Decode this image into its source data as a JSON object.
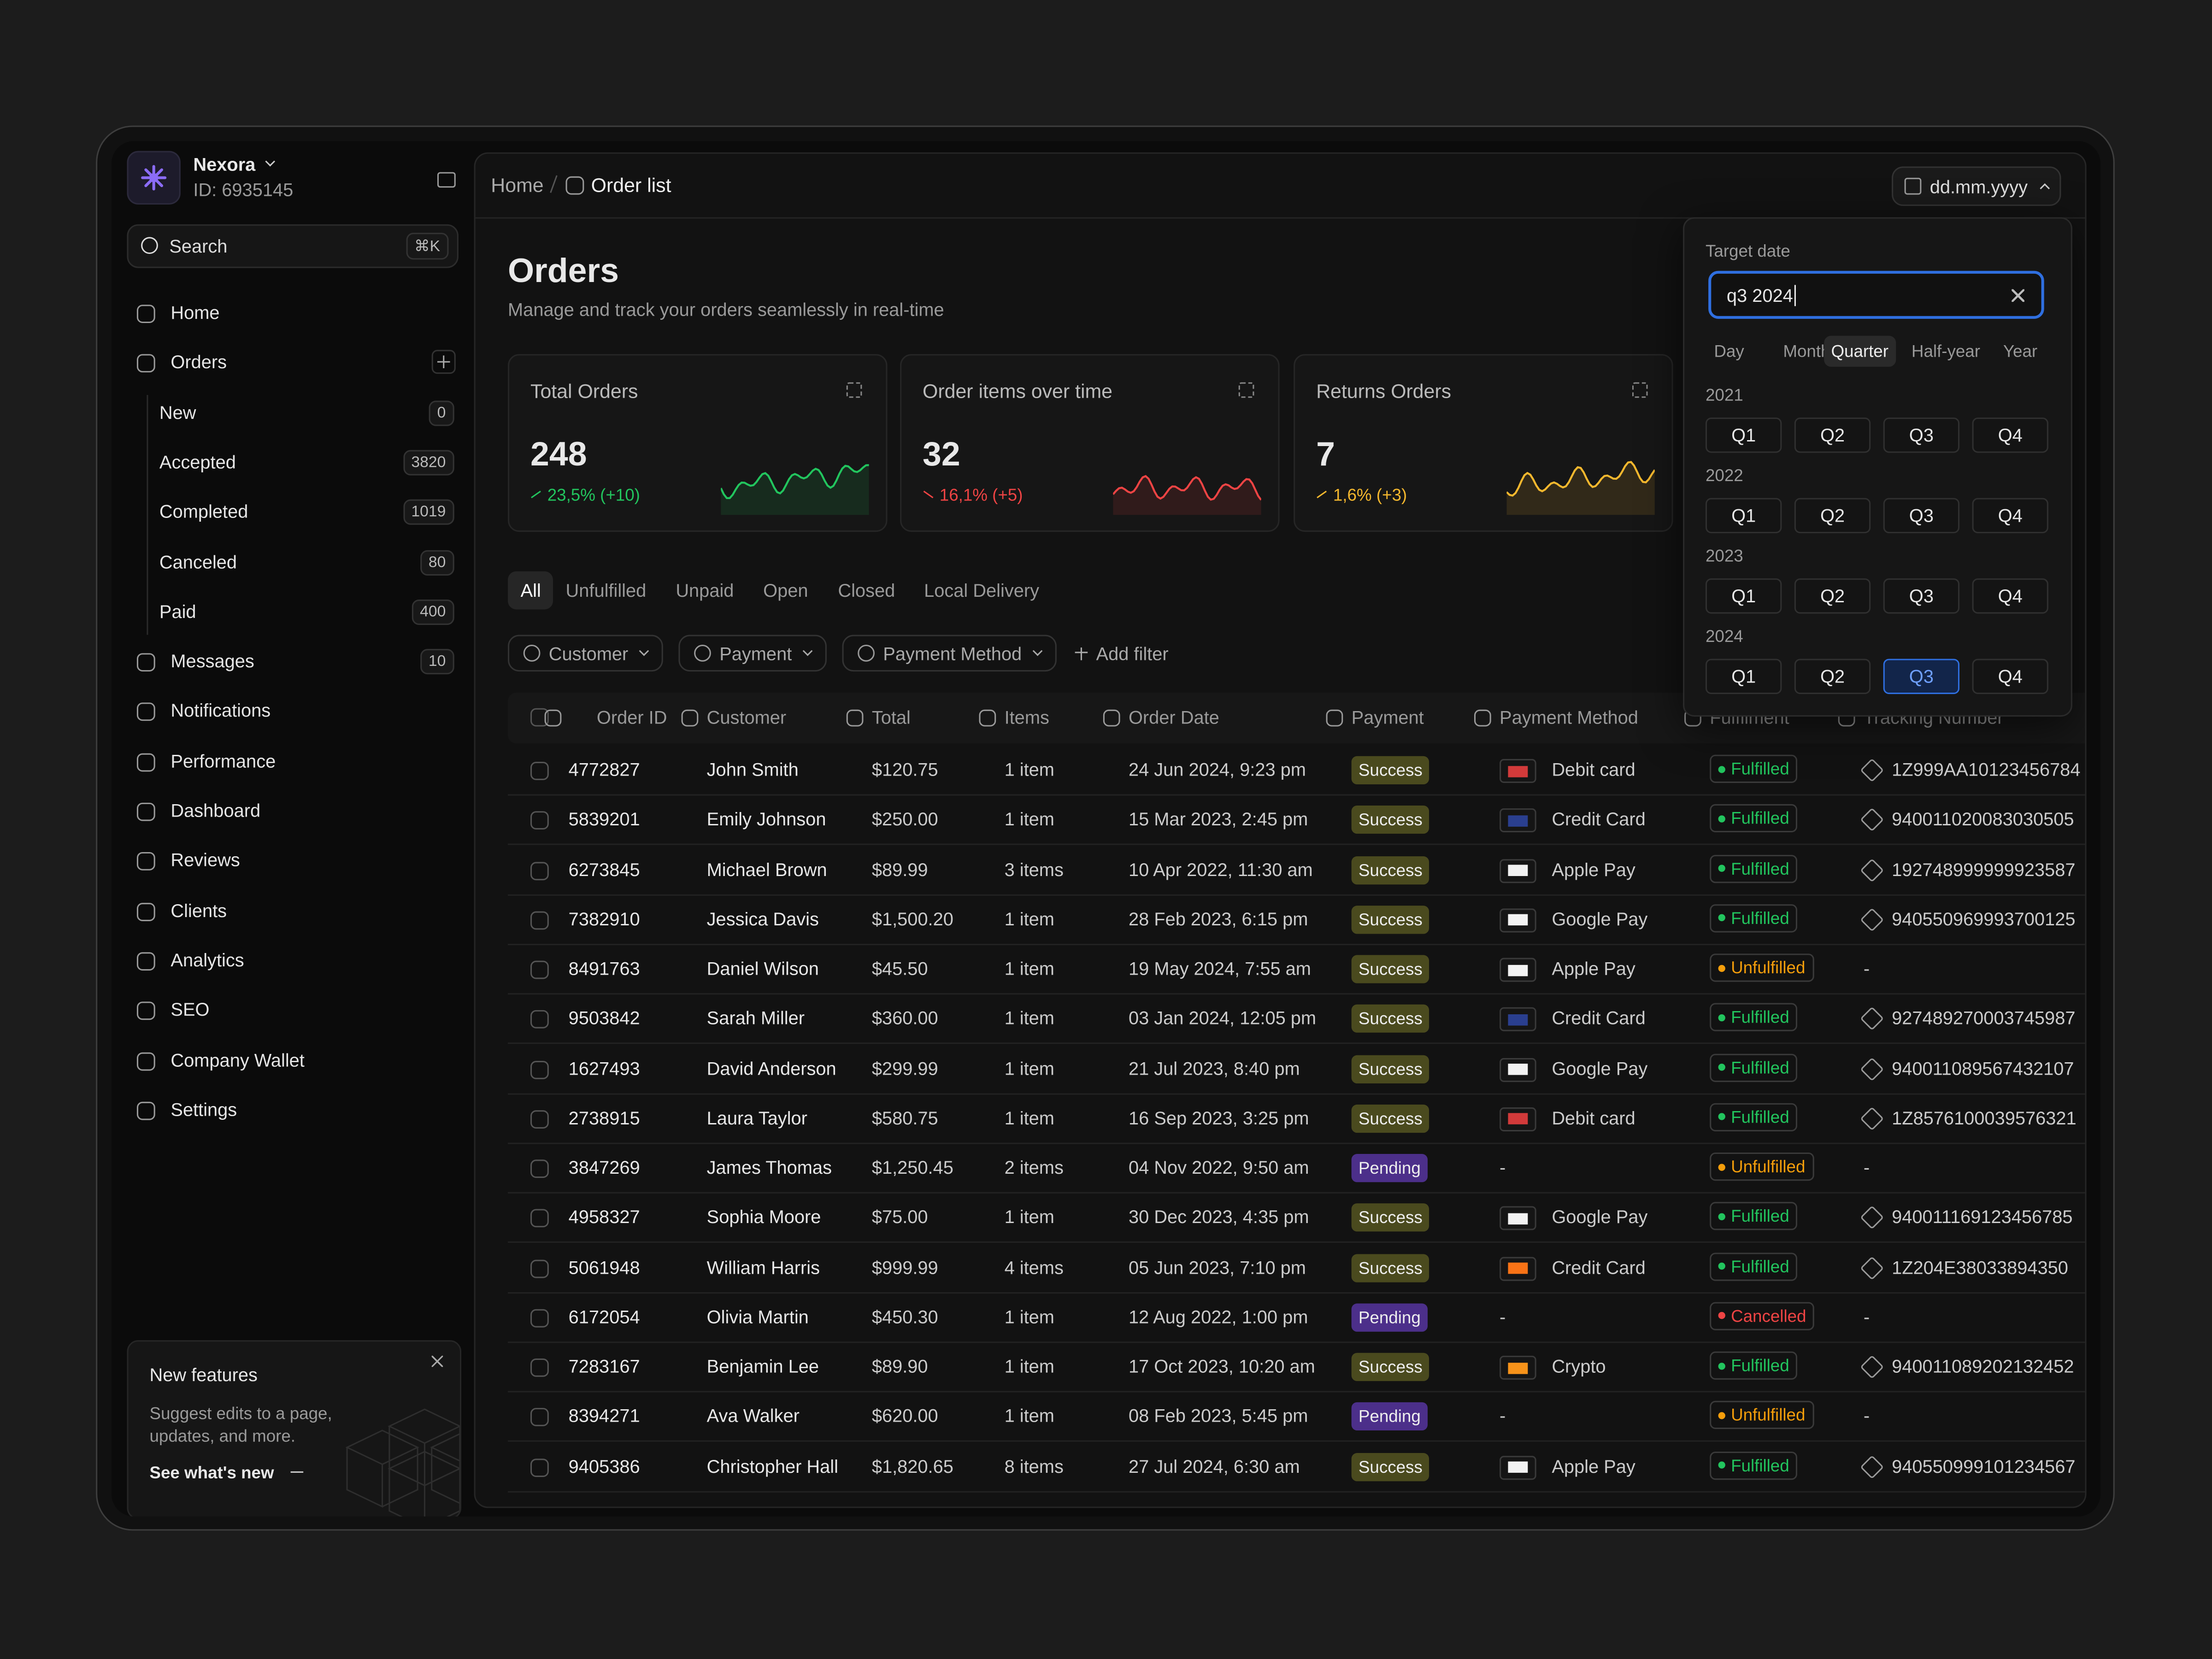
{
  "sidebar": {
    "brand": "Nexora",
    "brand_id": "ID: 6935145",
    "search": "Search",
    "shortcut": "⌘K",
    "nav_top": [
      "Home",
      "Orders"
    ],
    "orders_sub": [
      {
        "label": "New",
        "count": 0
      },
      {
        "label": "Accepted",
        "count": 3820
      },
      {
        "label": "Completed",
        "count": 1019
      },
      {
        "label": "Canceled",
        "count": 80
      },
      {
        "label": "Paid",
        "count": 400
      }
    ],
    "nav_bottom": [
      {
        "label": "Messages",
        "count": 10
      },
      {
        "label": "Notifications"
      },
      {
        "label": "Performance"
      },
      {
        "label": "Dashboard"
      },
      {
        "label": "Reviews"
      },
      {
        "label": "Clients"
      },
      {
        "label": "Analytics"
      },
      {
        "label": "SEO"
      },
      {
        "label": "Company Wallet"
      },
      {
        "label": "Settings"
      }
    ],
    "promo": {
      "title": "New features",
      "text": "Suggest edits to a page, updates, and more.",
      "link": "See what's new"
    }
  },
  "breadcrumb": [
    "Home",
    "Order list"
  ],
  "date_button": "dd.mm.yyyy",
  "header": {
    "title": "Orders",
    "subtitle": "Manage and track your orders seamlessly in real-time"
  },
  "stats": [
    {
      "title": "Total Orders",
      "value": 248,
      "change": "23,5% (+10)",
      "color": "#22c55e"
    },
    {
      "title": "Order items over time",
      "value": 32,
      "change": "16,1% (+5)",
      "color": "#ef4444"
    },
    {
      "title": "Returns Orders",
      "value": 7,
      "change": "1,6% (+3)",
      "color": "#f5b82e"
    }
  ],
  "tabs": [
    "All",
    "Unfulfilled",
    "Unpaid",
    "Open",
    "Closed",
    "Local Delivery"
  ],
  "active_tab_index": 0,
  "filters": [
    "Customer",
    "Payment",
    "Payment Method"
  ],
  "add_filter": "Add filter",
  "table": {
    "columns": [
      "Order ID",
      "Customer",
      "Total",
      "Items",
      "Order Date",
      "Payment",
      "Payment Method",
      "Fulfilment",
      "Tracking Number"
    ],
    "rows": [
      {
        "id": "4772827",
        "customer": "John Smith",
        "total": "$120.75",
        "items": "1 item",
        "date": "24 Jun 2024, 9:23 pm",
        "payment": "Success",
        "payment_color": "#4a4a1e",
        "method": "Debit card",
        "method_color": "#d23a3a",
        "fulfilment": "Fulfilled",
        "fulfilment_color": "#22c55e",
        "tracking": "1Z999AA10123456784"
      },
      {
        "id": "5839201",
        "customer": "Emily Johnson",
        "total": "$250.00",
        "items": "1 item",
        "date": "15 Mar 2023, 2:45 pm",
        "payment": "Success",
        "payment_color": "#4a4a1e",
        "method": "Credit Card",
        "method_color": "#2a3f8f",
        "fulfilment": "Fulfilled",
        "fulfilment_color": "#22c55e",
        "tracking": "940011020083030505"
      },
      {
        "id": "6273845",
        "customer": "Michael Brown",
        "total": "$89.99",
        "items": "3 items",
        "date": "10 Apr 2022, 11:30 am",
        "payment": "Success",
        "payment_color": "#4a4a1e",
        "method": "Apple Pay",
        "method_color": "#f2f2f2",
        "fulfilment": "Fulfilled",
        "fulfilment_color": "#22c55e",
        "tracking": "192748999999923587"
      },
      {
        "id": "7382910",
        "customer": "Jessica Davis",
        "total": "$1,500.20",
        "items": "1 item",
        "date": "28 Feb 2023, 6:15 pm",
        "payment": "Success",
        "payment_color": "#4a4a1e",
        "method": "Google Pay",
        "method_color": "#f2f2f2",
        "fulfilment": "Fulfilled",
        "fulfilment_color": "#22c55e",
        "tracking": "940550969993700125"
      },
      {
        "id": "8491763",
        "customer": "Daniel Wilson",
        "total": "$45.50",
        "items": "1 item",
        "date": "19 May 2024, 7:55 am",
        "payment": "Success",
        "payment_color": "#4a4a1e",
        "method": "Apple Pay",
        "method_color": "#f2f2f2",
        "fulfilment": "Unfulfilled",
        "fulfilment_color": "#f59e0b",
        "tracking": "-"
      },
      {
        "id": "9503842",
        "customer": "Sarah Miller",
        "total": "$360.00",
        "items": "1 item",
        "date": "03 Jan 2024, 12:05 pm",
        "payment": "Success",
        "payment_color": "#4a4a1e",
        "method": "Credit Card",
        "method_color": "#2a3f8f",
        "fulfilment": "Fulfilled",
        "fulfilment_color": "#22c55e",
        "tracking": "927489270003745987"
      },
      {
        "id": "1627493",
        "customer": "David Anderson",
        "total": "$299.99",
        "items": "1 item",
        "date": "21 Jul 2023, 8:40 pm",
        "payment": "Success",
        "payment_color": "#4a4a1e",
        "method": "Google Pay",
        "method_color": "#f2f2f2",
        "fulfilment": "Fulfilled",
        "fulfilment_color": "#22c55e",
        "tracking": "940011089567432107"
      },
      {
        "id": "2738915",
        "customer": "Laura Taylor",
        "total": "$580.75",
        "items": "1 item",
        "date": "16 Sep 2023, 3:25 pm",
        "payment": "Success",
        "payment_color": "#4a4a1e",
        "method": "Debit card",
        "method_color": "#d23a3a",
        "fulfilment": "Fulfilled",
        "fulfilment_color": "#22c55e",
        "tracking": "1Z8576100039576321"
      },
      {
        "id": "3847269",
        "customer": "James Thomas",
        "total": "$1,250.45",
        "items": "2 items",
        "date": "04 Nov 2022, 9:50 am",
        "payment": "Pending",
        "payment_color": "#4c2f8a",
        "method": "-",
        "fulfilment": "Unfulfilled",
        "fulfilment_color": "#f59e0b",
        "tracking": "-"
      },
      {
        "id": "4958327",
        "customer": "Sophia Moore",
        "total": "$75.00",
        "items": "1 item",
        "date": "30 Dec 2023, 4:35 pm",
        "payment": "Success",
        "payment_color": "#4a4a1e",
        "method": "Google Pay",
        "method_color": "#f2f2f2",
        "fulfilment": "Fulfilled",
        "fulfilment_color": "#22c55e",
        "tracking": "940011169123456785"
      },
      {
        "id": "5061948",
        "customer": "William Harris",
        "total": "$999.99",
        "items": "4 items",
        "date": "05 Jun 2023, 7:10 pm",
        "payment": "Success",
        "payment_color": "#4a4a1e",
        "method": "Credit Card",
        "method_color": "#f97316",
        "fulfilment": "Fulfilled",
        "fulfilment_color": "#22c55e",
        "tracking": "1Z204E38033894350"
      },
      {
        "id": "6172054",
        "customer": "Olivia Martin",
        "total": "$450.30",
        "items": "1 item",
        "date": "12 Aug 2022, 1:00 pm",
        "payment": "Pending",
        "payment_color": "#4c2f8a",
        "method": "-",
        "fulfilment": "Cancelled",
        "fulfilment_color": "#ef4444",
        "tracking": "-"
      },
      {
        "id": "7283167",
        "customer": "Benjamin Lee",
        "total": "$89.90",
        "items": "1 item",
        "date": "17 Oct 2023, 10:20 am",
        "payment": "Success",
        "payment_color": "#4a4a1e",
        "method": "Crypto",
        "method_color": "#f7931a",
        "fulfilment": "Fulfilled",
        "fulfilment_color": "#22c55e",
        "tracking": "940011089202132452"
      },
      {
        "id": "8394271",
        "customer": "Ava Walker",
        "total": "$620.00",
        "items": "1 item",
        "date": "08 Feb 2023, 5:45 pm",
        "payment": "Pending",
        "payment_color": "#4c2f8a",
        "method": "-",
        "fulfilment": "Unfulfilled",
        "fulfilment_color": "#f59e0b",
        "tracking": "-"
      },
      {
        "id": "9405386",
        "customer": "Christopher Hall",
        "total": "$1,820.65",
        "items": "8 items",
        "date": "27 Jul 2024, 6:30 am",
        "payment": "Success",
        "payment_color": "#4a4a1e",
        "method": "Apple Pay",
        "method_color": "#f2f2f2",
        "fulfilment": "Fulfilled",
        "fulfilment_color": "#22c55e",
        "tracking": "940550999101234567"
      }
    ]
  },
  "date_picker": {
    "label": "Target date",
    "input": "q3 2024",
    "modes": [
      "Day",
      "Month",
      "Quarter",
      "Half-year",
      "Year"
    ],
    "active_mode_index": 2,
    "years": [
      "2021",
      "2022",
      "2023",
      "2024"
    ],
    "quarters": [
      "Q1",
      "Q2",
      "Q3",
      "Q4"
    ],
    "selected_year_index": 3,
    "selected_quarter_index": 2
  }
}
